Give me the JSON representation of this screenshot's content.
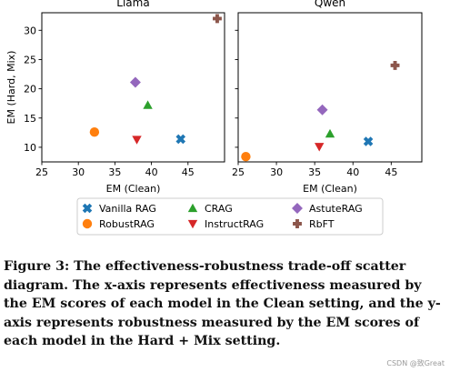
{
  "chart_data": {
    "type": "scatter",
    "ylabel": "EM (Hard, Mix)",
    "markers": {
      "Vanilla RAG": {
        "color": "#1f77b4",
        "shape": "x"
      },
      "RobustRAG": {
        "color": "#ff7f0e",
        "shape": "circle"
      },
      "CRAG": {
        "color": "#2ca02c",
        "shape": "triangle-up"
      },
      "InstructRAG": {
        "color": "#d62728",
        "shape": "triangle-down"
      },
      "AstuteRAG": {
        "color": "#9467bd",
        "shape": "diamond"
      },
      "RbFT": {
        "color": "#8c564b",
        "shape": "plus"
      }
    },
    "legend": {
      "placement": "bottom-center",
      "columns": 3,
      "entries": [
        "Vanilla RAG",
        "RobustRAG",
        "CRAG",
        "InstructRAG",
        "AstuteRAG",
        "RbFT"
      ]
    },
    "panels": [
      {
        "title": "Llama",
        "xlabel": "EM (Clean)",
        "xlim": [
          25,
          50
        ],
        "ylim": [
          7.5,
          33
        ],
        "xticks": [
          25,
          30,
          35,
          40,
          45
        ],
        "yticks": [
          10,
          15,
          20,
          25,
          30
        ],
        "points": [
          {
            "series": "Vanilla RAG",
            "x": 44,
            "y": 11.4
          },
          {
            "series": "RobustRAG",
            "x": 32.2,
            "y": 12.6
          },
          {
            "series": "CRAG",
            "x": 39.5,
            "y": 17.2
          },
          {
            "series": "InstructRAG",
            "x": 38,
            "y": 11.3
          },
          {
            "series": "AstuteRAG",
            "x": 37.8,
            "y": 21.1
          },
          {
            "series": "RbFT",
            "x": 49,
            "y": 32
          }
        ]
      },
      {
        "title": "Qwen",
        "xlabel": "EM (Clean)",
        "xlim": [
          25,
          49
        ],
        "ylim": [
          7.5,
          33
        ],
        "xticks": [
          25,
          30,
          35,
          40,
          45
        ],
        "yticks": [
          10,
          15,
          20,
          25,
          30
        ],
        "points": [
          {
            "series": "Vanilla RAG",
            "x": 42,
            "y": 11
          },
          {
            "series": "RobustRAG",
            "x": 26,
            "y": 8.4
          },
          {
            "series": "CRAG",
            "x": 37,
            "y": 12.3
          },
          {
            "series": "InstructRAG",
            "x": 35.6,
            "y": 10.1
          },
          {
            "series": "AstuteRAG",
            "x": 36,
            "y": 16.4
          },
          {
            "series": "RbFT",
            "x": 45.5,
            "y": 24
          }
        ]
      }
    ]
  },
  "caption": "Figure 3: The effectiveness-robustness trade-off scatter diagram. The x-axis represents effectiveness measured by the EM scores of each model in the Clean setting, and the y-axis represents robustness measured by the EM scores of each model in the Hard + Mix setting.",
  "watermark": "CSDN @致Great"
}
